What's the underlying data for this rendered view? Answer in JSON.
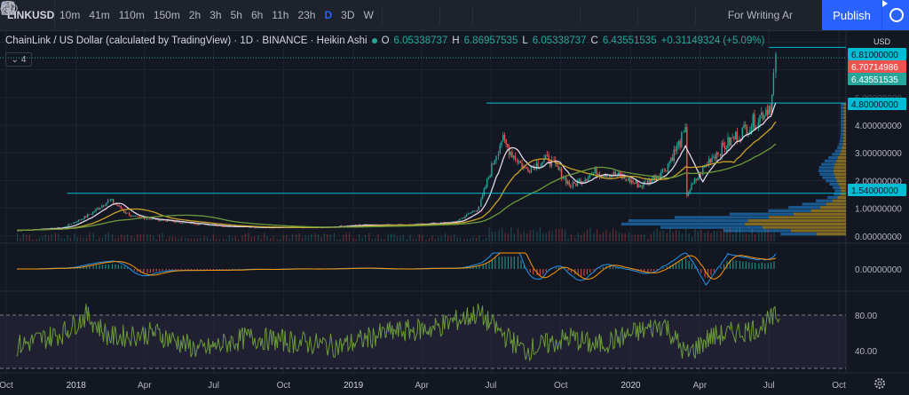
{
  "symbol": "LINKUSD",
  "intervals": [
    "10m",
    "41m",
    "110m",
    "150m",
    "2h",
    "3h",
    "5h",
    "6h",
    "11h",
    "23h",
    "D",
    "3D",
    "W"
  ],
  "active_interval": "D",
  "writing_label": "For Writing Ar",
  "publish_label": "Publish",
  "legend": {
    "title": "ChainLink / US Dollar (calculated by TradingView) · 1D · BINANCE · Heikin Ashi",
    "o": "6.05338737",
    "h": "6.86957535",
    "l": "6.05338737",
    "c": "6.43551535",
    "change": "+0.31149324 (+5.09%)"
  },
  "indicator_count": "4",
  "colors": {
    "bg": "#131722",
    "up": "#26a69a",
    "down": "#ef5350",
    "hline": "#00bcd4",
    "ma_white": "#e0d6e8",
    "ma_yellow": "#c9a227",
    "ma_green": "#6a9a3a",
    "vp_blue": "#1e6fb5",
    "vp_yellow": "#c9a227",
    "rsi": "#6a9a3a",
    "rsi_band": "#2b2640",
    "macd_blue": "#2196f3",
    "macd_orange": "#ff9800"
  },
  "chart_data": [
    {
      "type": "line",
      "title": "ChainLink / US Dollar (calculated by TradingView) · 1D · BINANCE · Heikin Ashi",
      "currency": "USD",
      "x": [
        "2017-10",
        "2017-12",
        "2018-01",
        "2018-02",
        "2018-03",
        "2018-05",
        "2018-07",
        "2018-09",
        "2018-11",
        "2019-01",
        "2019-03",
        "2019-05",
        "2019-06",
        "2019-07",
        "2019-08",
        "2019-09",
        "2019-10",
        "2019-11",
        "2019-12",
        "2020-01",
        "2020-02",
        "2020-03",
        "2020-03-15",
        "2020-04",
        "2020-05",
        "2020-06",
        "2020-07-05",
        "2020-07-10"
      ],
      "series": [
        {
          "values": [
            0.2,
            0.3,
            0.7,
            1.3,
            0.7,
            0.5,
            0.35,
            0.3,
            0.3,
            0.4,
            0.4,
            0.5,
            1.0,
            3.5,
            2.4,
            2.8,
            1.8,
            2.3,
            2.2,
            1.8,
            2.4,
            3.8,
            1.5,
            2.8,
            3.5,
            4.2,
            4.8,
            6.4
          ]
        }
      ],
      "ylim": [
        -0.2,
        7.4
      ],
      "y_ticks": [
        "0.00000000",
        "1.00000000",
        "2.00000000",
        "3.00000000",
        "4.00000000"
      ],
      "x_ticks": [
        "Oct",
        "2018",
        "Apr",
        "Jul",
        "Oct",
        "2019",
        "Apr",
        "Jul",
        "Oct",
        "2020",
        "Apr",
        "Jul",
        "Oct"
      ],
      "horizontal_lines": [
        6.81,
        4.8,
        1.54
      ],
      "price_labels": [
        "6.81000000",
        "6.70714986",
        "6.43551535",
        "4.80000000",
        "1.54000000"
      ]
    },
    {
      "type": "line",
      "y_ticks": [
        "0.00000000"
      ]
    },
    {
      "type": "line",
      "x": [
        "2017-10",
        "2017-12",
        "2018-01",
        "2018-02",
        "2018-04",
        "2018-06",
        "2018-08",
        "2018-10",
        "2018-12",
        "2019-02",
        "2019-04",
        "2019-06",
        "2019-07",
        "2019-08",
        "2019-10",
        "2019-11",
        "2020-01",
        "2020-02",
        "2020-03",
        "2020-04",
        "2020-05",
        "2020-06",
        "2020-07"
      ],
      "series": [
        {
          "values": [
            45,
            60,
            80,
            55,
            60,
            40,
            55,
            50,
            45,
            60,
            65,
            82,
            60,
            40,
            55,
            45,
            62,
            70,
            35,
            55,
            60,
            65,
            80
          ]
        }
      ],
      "ylim": [
        15,
        105
      ],
      "bands": [
        80,
        20
      ],
      "y_ticks": [
        "80.00",
        "40.00"
      ]
    }
  ]
}
